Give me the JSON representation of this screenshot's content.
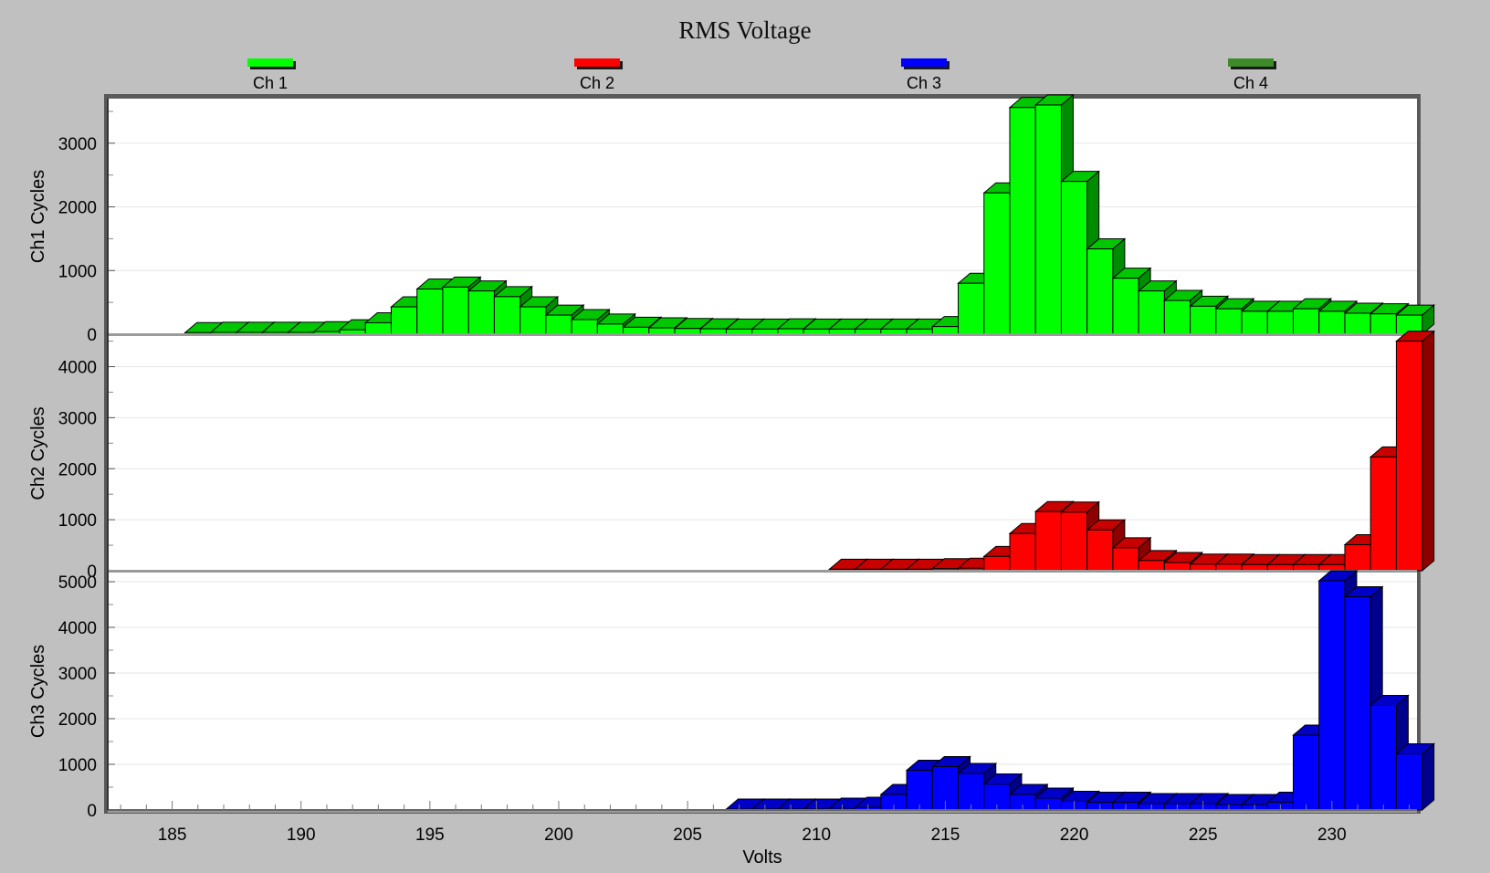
{
  "chart_data": {
    "type": "bar",
    "title": "RMS Voltage",
    "xlabel": "Volts",
    "xlim": [
      182.5,
      233.3
    ],
    "xticks": [
      185,
      190,
      195,
      200,
      205,
      210,
      215,
      220,
      225,
      230
    ],
    "bin_width": 1,
    "x": [
      186,
      187,
      188,
      189,
      190,
      191,
      192,
      193,
      194,
      195,
      196,
      197,
      198,
      199,
      200,
      201,
      202,
      203,
      204,
      205,
      206,
      207,
      208,
      209,
      210,
      211,
      212,
      213,
      214,
      215,
      216,
      217,
      218,
      219,
      220,
      221,
      222,
      223,
      224,
      225,
      226,
      227,
      228,
      229,
      230,
      231,
      232,
      233
    ],
    "legend": [
      {
        "name": "Ch 1",
        "color": "#00ff00"
      },
      {
        "name": "Ch 2",
        "color": "#ff0000"
      },
      {
        "name": "Ch 3",
        "color": "#0000ff"
      },
      {
        "name": "Ch 4",
        "color": "#3c8a28"
      }
    ],
    "series": [
      {
        "name": "Ch 1",
        "ylabel": "Ch1 Cycles",
        "color": "#00ff00",
        "ylim": [
          0,
          3700
        ],
        "yticks": [
          0,
          1000,
          2000,
          3000
        ],
        "values": [
          25,
          30,
          30,
          30,
          30,
          40,
          70,
          180,
          430,
          710,
          740,
          680,
          590,
          430,
          300,
          230,
          160,
          110,
          100,
          90,
          85,
          80,
          80,
          85,
          80,
          80,
          80,
          80,
          80,
          120,
          800,
          2220,
          3560,
          3600,
          2400,
          1340,
          880,
          680,
          530,
          440,
          400,
          360,
          360,
          400,
          360,
          330,
          320,
          300
        ]
      },
      {
        "name": "Ch 2",
        "ylabel": "Ch2 Cycles",
        "color": "#ff0000",
        "ylim": [
          0,
          4600
        ],
        "yticks": [
          0,
          1000,
          2000,
          3000,
          4000
        ],
        "values": [
          null,
          null,
          null,
          null,
          null,
          null,
          null,
          null,
          null,
          null,
          null,
          null,
          null,
          null,
          null,
          null,
          null,
          null,
          null,
          null,
          null,
          null,
          null,
          null,
          null,
          30,
          30,
          30,
          30,
          40,
          50,
          280,
          730,
          1160,
          1150,
          800,
          450,
          200,
          160,
          130,
          130,
          120,
          120,
          120,
          120,
          510,
          2230,
          4500
        ]
      },
      {
        "name": "Ch 3",
        "ylabel": "Ch3 Cycles",
        "color": "#0000ff",
        "ylim": [
          0,
          5200
        ],
        "yticks": [
          0,
          1000,
          2000,
          3000,
          4000,
          5000
        ],
        "values": [
          null,
          null,
          null,
          null,
          null,
          null,
          null,
          null,
          null,
          null,
          null,
          null,
          null,
          null,
          null,
          null,
          null,
          null,
          null,
          null,
          null,
          20,
          20,
          20,
          20,
          40,
          60,
          340,
          870,
          950,
          800,
          570,
          340,
          260,
          190,
          170,
          170,
          140,
          140,
          140,
          120,
          120,
          170,
          1640,
          5020,
          4670,
          2290,
          1230
        ]
      }
    ]
  }
}
